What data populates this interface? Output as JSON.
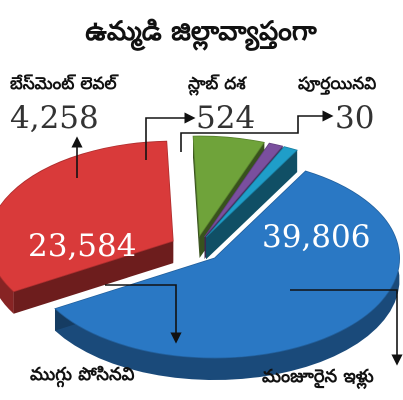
{
  "chart_data": {
    "type": "pie",
    "title": "ఉమ్మడి జిల్లావ్యాప్తంగా",
    "categories": [
      "బేస్‌మెంట్ లెవల్",
      "స్లాబ్ దశ",
      "పూర్తయినవి",
      "మంజూరైన ఇళ్లు",
      "ముగ్గు పోసినవి"
    ],
    "values": [
      4258,
      524,
      30,
      39806,
      23584
    ],
    "value_labels": [
      "4,258",
      "524",
      "30",
      "39,806",
      "23,584"
    ],
    "colors": [
      "#6fa33a",
      "#7a4f9e",
      "#1f9ec9",
      "#2a78c4",
      "#d93a3a"
    ]
  }
}
